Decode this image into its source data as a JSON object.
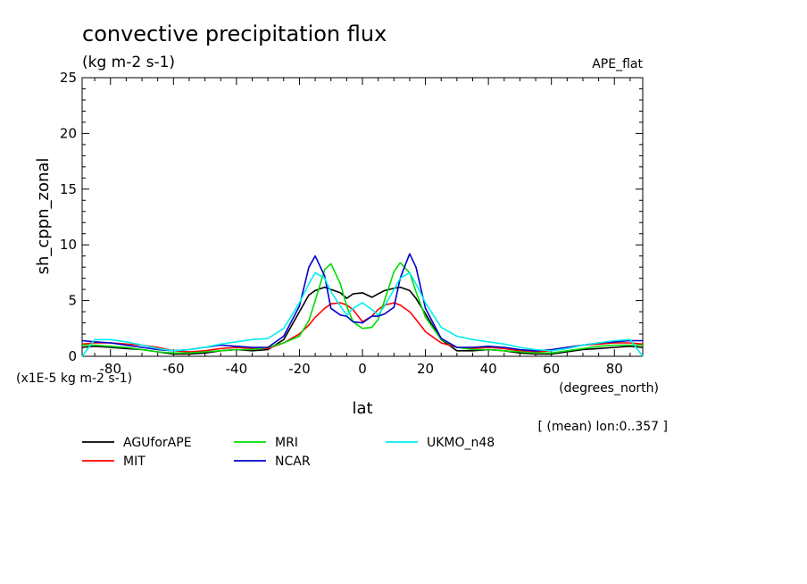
{
  "chart_data": {
    "type": "line",
    "title": "convective precipitation flux",
    "subtitle": "(kg m-2 s-1)",
    "dataset_label": "APE_flat",
    "xlabel": "lat",
    "x_unit_label": "(degrees_north)",
    "ylabel": "sh_cppn_zonal",
    "y_scale_label": "(x1E-5 kg m-2 s-1)",
    "mean_note": "[ (mean) lon:0..357 ]",
    "xlim": [
      -89,
      89
    ],
    "ylim": [
      0,
      25
    ],
    "x_ticks": [
      -80,
      -60,
      -40,
      -20,
      0,
      20,
      40,
      60,
      80
    ],
    "y_ticks": [
      0,
      5,
      10,
      15,
      20,
      25
    ],
    "legend_position": "bottom",
    "x": [
      -89,
      -85,
      -80,
      -75,
      -70,
      -65,
      -60,
      -55,
      -50,
      -45,
      -40,
      -35,
      -30,
      -25,
      -20,
      -17,
      -15,
      -12,
      -10,
      -7,
      -5,
      -3,
      0,
      3,
      5,
      7,
      10,
      12,
      15,
      17,
      20,
      25,
      30,
      35,
      40,
      45,
      50,
      55,
      60,
      65,
      70,
      75,
      80,
      85,
      89
    ],
    "series": [
      {
        "name": "AGUforAPE",
        "color": "#000000",
        "values": [
          0.8,
          0.9,
          0.8,
          0.7,
          0.6,
          0.4,
          0.2,
          0.2,
          0.3,
          0.5,
          0.6,
          0.5,
          0.6,
          1.5,
          4.0,
          5.5,
          5.9,
          6.2,
          6.0,
          5.7,
          5.2,
          5.6,
          5.7,
          5.3,
          5.6,
          5.9,
          6.1,
          6.2,
          5.9,
          5.2,
          3.8,
          1.5,
          0.5,
          0.5,
          0.6,
          0.5,
          0.3,
          0.2,
          0.2,
          0.4,
          0.6,
          0.7,
          0.8,
          0.9,
          0.8
        ]
      },
      {
        "name": "MIT",
        "color": "#ff0000",
        "values": [
          1.1,
          1.2,
          1.2,
          1.1,
          1.0,
          0.8,
          0.5,
          0.4,
          0.5,
          0.7,
          0.8,
          0.7,
          0.7,
          1.2,
          2.0,
          2.8,
          3.5,
          4.3,
          4.7,
          4.8,
          4.6,
          4.2,
          3.1,
          3.6,
          4.2,
          4.6,
          4.8,
          4.6,
          4.0,
          3.3,
          2.2,
          1.2,
          0.8,
          0.7,
          0.8,
          0.7,
          0.5,
          0.4,
          0.5,
          0.8,
          1.0,
          1.1,
          1.2,
          1.2,
          1.1
        ]
      },
      {
        "name": "MRI",
        "color": "#00dd00",
        "values": [
          1.0,
          1.0,
          0.9,
          0.8,
          0.6,
          0.4,
          0.3,
          0.3,
          0.4,
          0.5,
          0.6,
          0.6,
          0.8,
          1.2,
          1.8,
          3.2,
          5.0,
          7.8,
          8.3,
          6.5,
          4.5,
          3.1,
          2.5,
          2.6,
          3.3,
          5.0,
          7.6,
          8.4,
          7.5,
          5.8,
          3.5,
          1.5,
          0.8,
          0.6,
          0.6,
          0.5,
          0.4,
          0.3,
          0.3,
          0.5,
          0.7,
          0.9,
          1.0,
          1.0,
          1.0
        ]
      },
      {
        "name": "NCAR",
        "color": "#0000cc",
        "values": [
          1.4,
          1.3,
          1.2,
          1.0,
          0.8,
          0.6,
          0.5,
          0.6,
          0.8,
          1.0,
          0.9,
          0.8,
          0.8,
          1.8,
          4.5,
          8.0,
          9.0,
          7.2,
          4.3,
          3.7,
          3.6,
          3.1,
          3.0,
          3.6,
          3.6,
          3.8,
          4.4,
          7.0,
          9.2,
          8.0,
          4.3,
          1.6,
          0.8,
          0.8,
          0.9,
          0.8,
          0.6,
          0.5,
          0.6,
          0.8,
          1.0,
          1.2,
          1.3,
          1.4,
          1.4
        ]
      },
      {
        "name": "UKMO_n48",
        "color": "#00eeee",
        "values": [
          0.0,
          1.5,
          1.5,
          1.3,
          1.0,
          0.7,
          0.5,
          0.6,
          0.8,
          1.1,
          1.3,
          1.5,
          1.6,
          2.5,
          4.8,
          6.5,
          7.5,
          7.0,
          5.8,
          4.5,
          3.7,
          4.3,
          4.8,
          4.2,
          3.7,
          4.5,
          6.0,
          7.0,
          7.5,
          6.5,
          4.8,
          2.6,
          1.8,
          1.5,
          1.3,
          1.1,
          0.8,
          0.6,
          0.5,
          0.7,
          1.0,
          1.2,
          1.4,
          1.5,
          0.0
        ]
      }
    ]
  }
}
